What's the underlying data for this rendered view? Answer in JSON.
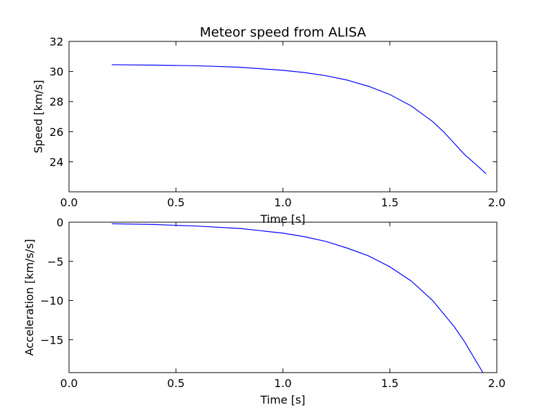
{
  "chart_data": [
    {
      "type": "line",
      "title": "Meteor speed from  ALISA",
      "xlabel": "Time [s]",
      "ylabel": "Speed [km/s]",
      "xlim": [
        0.0,
        2.0
      ],
      "ylim": [
        22.0,
        32.0
      ],
      "xticks": [
        0.0,
        0.5,
        1.0,
        1.5,
        2.0
      ],
      "xtick_labels": [
        "0.0",
        "0.5",
        "1.0",
        "1.5",
        "2.0"
      ],
      "yticks": [
        24,
        26,
        28,
        30,
        32
      ],
      "ytick_labels": [
        "24",
        "26",
        "28",
        "30",
        "32"
      ],
      "grid": false,
      "series": [
        {
          "color": "#0000ff",
          "x": [
            0.2,
            0.4,
            0.6,
            0.8,
            1.0,
            1.1,
            1.2,
            1.3,
            1.4,
            1.5,
            1.6,
            1.7,
            1.75,
            1.8,
            1.85,
            1.9,
            1.95
          ],
          "y": [
            30.45,
            30.42,
            30.38,
            30.28,
            30.08,
            29.93,
            29.72,
            29.43,
            29.02,
            28.47,
            27.71,
            26.67,
            26.01,
            25.24,
            24.47,
            23.85,
            23.2
          ]
        }
      ]
    },
    {
      "type": "line",
      "xlabel": "Time [s]",
      "ylabel": "Acceleration [km/s/s]",
      "xlim": [
        0.0,
        2.0
      ],
      "ylim": [
        -19.2,
        0.0
      ],
      "xticks": [
        0.0,
        0.5,
        1.0,
        1.5,
        2.0
      ],
      "xtick_labels": [
        "0.0",
        "0.5",
        "1.0",
        "1.5",
        "2.0"
      ],
      "yticks": [
        0,
        -5,
        -10,
        -15
      ],
      "ytick_labels": [
        "0",
        "−5",
        "−10",
        "−15"
      ],
      "grid": false,
      "series": [
        {
          "color": "#0000ff",
          "x": [
            0.2,
            0.4,
            0.6,
            0.8,
            1.0,
            1.1,
            1.2,
            1.3,
            1.4,
            1.5,
            1.6,
            1.7,
            1.8,
            1.85,
            1.9,
            1.935
          ],
          "y": [
            -0.2,
            -0.3,
            -0.5,
            -0.8,
            -1.4,
            -1.85,
            -2.45,
            -3.3,
            -4.3,
            -5.7,
            -7.5,
            -10.0,
            -13.3,
            -15.3,
            -17.6,
            -19.2
          ]
        }
      ]
    }
  ]
}
